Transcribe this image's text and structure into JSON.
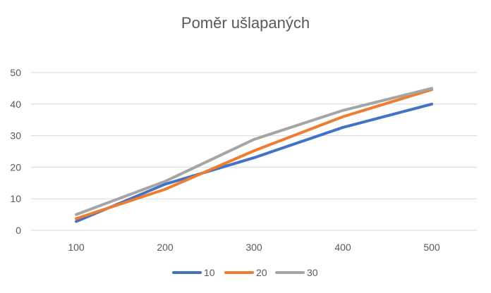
{
  "chart_data": {
    "type": "line",
    "title": "Poměr ušlapaných",
    "xlabel": "",
    "ylabel": "",
    "x": [
      100,
      200,
      300,
      400,
      500
    ],
    "categories": [
      "100",
      "200",
      "300",
      "400",
      "500"
    ],
    "ylim": [
      0,
      50
    ],
    "yticks": [
      0,
      10,
      20,
      30,
      40,
      50
    ],
    "grid": true,
    "legend_position": "bottom",
    "series": [
      {
        "name": "10",
        "color": "#4472C4",
        "values": [
          2.8,
          14.6,
          23.0,
          32.6,
          40.0
        ]
      },
      {
        "name": "20",
        "color": "#ED7D31",
        "values": [
          3.7,
          13.0,
          25.2,
          36.0,
          44.6
        ]
      },
      {
        "name": "30",
        "color": "#A5A5A5",
        "values": [
          5.0,
          15.5,
          28.8,
          38.0,
          45.0
        ]
      }
    ]
  }
}
